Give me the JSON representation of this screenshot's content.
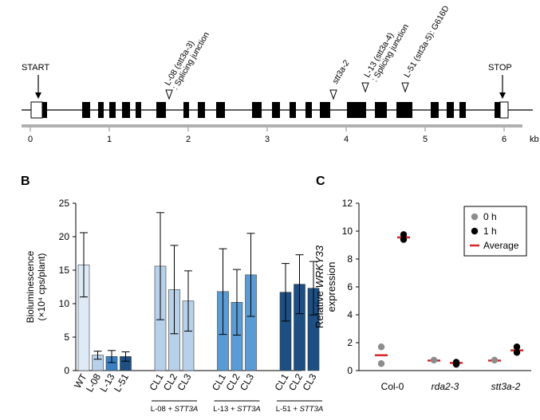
{
  "panel_a": {
    "start_label": "START",
    "stop_label": "STOP",
    "mutations": [
      {
        "allele": "L-08 (stt3a-3)",
        "note": ": Splicing junction",
        "position_kb": 1.8
      },
      {
        "allele": "stt3a-2",
        "note": "",
        "position_kb": 3.85
      },
      {
        "allele": "L-13 (stt3a-4)",
        "note": ": Splicing junction",
        "position_kb": 4.25
      },
      {
        "allele": "L-51 (stt3a-5): G616D",
        "note": "",
        "position_kb": 4.72
      }
    ],
    "scale_ticks": [
      "0",
      "1",
      "2",
      "3",
      "4",
      "5",
      "6"
    ],
    "scale_unit": "kb"
  },
  "panel_b": {
    "label": "B",
    "chart_data": {
      "type": "bar",
      "ylabel": "Bioluminescence (×10⁴ cps/plant)",
      "ylim": [
        0,
        25
      ],
      "yticks": [
        "0",
        "5",
        "10",
        "15",
        "20",
        "25"
      ],
      "categories": [
        "WT",
        "L-08",
        "L-13",
        "L-51",
        "CL1",
        "CL2",
        "CL3",
        "CL1",
        "CL2",
        "CL3",
        "CL1",
        "CL2",
        "CL3"
      ],
      "values": [
        15.8,
        2.3,
        2.1,
        2.1,
        15.6,
        12.1,
        10.4,
        11.8,
        10.2,
        14.3,
        11.7,
        12.9,
        12.3
      ],
      "errors": [
        4.8,
        0.6,
        0.9,
        0.7,
        8.0,
        6.6,
        4.5,
        6.4,
        4.9,
        6.2,
        4.3,
        4.4,
        4.0
      ],
      "colors": [
        "#deebf7",
        "#b7d1ea",
        "#3b7fc4",
        "#1d4f82",
        "#b7d1ea",
        "#b7d1ea",
        "#b7d1ea",
        "#5b9bd5",
        "#5b9bd5",
        "#5b9bd5",
        "#1d4f82",
        "#1d4f82",
        "#1d4f82"
      ],
      "groups": [
        {
          "label": "L-08 + STT3A",
          "first": 4,
          "last": 6
        },
        {
          "label": "L-13 + STT3A",
          "first": 7,
          "last": 9
        },
        {
          "label": "L-51 + STT3A",
          "first": 10,
          "last": 12
        }
      ]
    }
  },
  "panel_c": {
    "label": "C",
    "chart_data": {
      "type": "scatter",
      "ylabel_line1": "Relative WRKY33",
      "ylabel_line2": "expression",
      "ylim": [
        0,
        12
      ],
      "yticks": [
        "0",
        "2",
        "4",
        "6",
        "8",
        "10",
        "12"
      ],
      "categories": [
        "Col-0",
        "rda2-3",
        "stt3a-2"
      ],
      "legend": [
        "0 h",
        "1 h",
        "Average"
      ],
      "legend_position": "top-right",
      "series": [
        {
          "name": "0 h",
          "color": "#8c8c8c",
          "points": [
            [
              0,
              1.7
            ],
            [
              0,
              0.5
            ],
            [
              1,
              0.75
            ],
            [
              2,
              0.75
            ]
          ]
        },
        {
          "name": "1 h",
          "color": "#000000",
          "points": [
            [
              0,
              9.75
            ],
            [
              0,
              9.4
            ],
            [
              1,
              0.6
            ],
            [
              1,
              0.45
            ],
            [
              2,
              1.7
            ],
            [
              2,
              1.3
            ]
          ]
        }
      ],
      "averages": [
        {
          "group": 0,
          "time": "0 h",
          "value": 1.1
        },
        {
          "group": 0,
          "time": "1 h",
          "value": 9.55
        },
        {
          "group": 1,
          "time": "0 h",
          "value": 0.72
        },
        {
          "group": 1,
          "time": "1 h",
          "value": 0.55
        },
        {
          "group": 2,
          "time": "0 h",
          "value": 0.72
        },
        {
          "group": 2,
          "time": "1 h",
          "value": 1.45
        }
      ],
      "average_color": "#d62728"
    }
  }
}
